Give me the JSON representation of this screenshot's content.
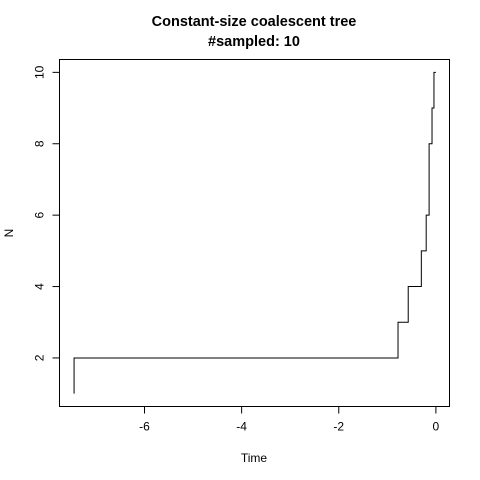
{
  "chart_data": {
    "type": "line",
    "title": "Constant-size coalescent tree",
    "subtitle": "#sampled: 10",
    "xlabel": "Time",
    "ylabel": "N",
    "xlim": [
      -7.75,
      0.28
    ],
    "ylim": [
      0.64,
      10.36
    ],
    "x_ticks": [
      -6,
      -4,
      -2,
      0
    ],
    "y_ticks": [
      2,
      4,
      6,
      8,
      10
    ],
    "x_tick_labels": [
      "-6",
      "-4",
      "-2",
      "0"
    ],
    "y_tick_labels": [
      "2",
      "4",
      "6",
      "8",
      "10"
    ],
    "line_style": "step",
    "grid": false,
    "x": [
      -7.45,
      -0.78,
      -0.57,
      -0.3,
      -0.2,
      -0.14,
      -0.1,
      -0.03
    ],
    "y": [
      1,
      2,
      3,
      4,
      5,
      6,
      7,
      8
    ],
    "series": [
      {
        "x": [
          -7.45,
          -7.45,
          -0.78,
          -0.78,
          -0.57,
          -0.57,
          -0.3,
          -0.3,
          -0.2,
          -0.2,
          -0.14,
          -0.14,
          -0.14,
          -0.14,
          -0.08,
          -0.08,
          -0.04,
          -0.04,
          0.0,
          0.0
        ],
        "y": [
          1,
          2,
          2,
          3,
          3,
          4,
          4,
          5,
          5,
          6,
          6,
          7,
          7,
          8,
          8,
          9,
          9,
          10,
          10,
          10
        ]
      }
    ]
  }
}
